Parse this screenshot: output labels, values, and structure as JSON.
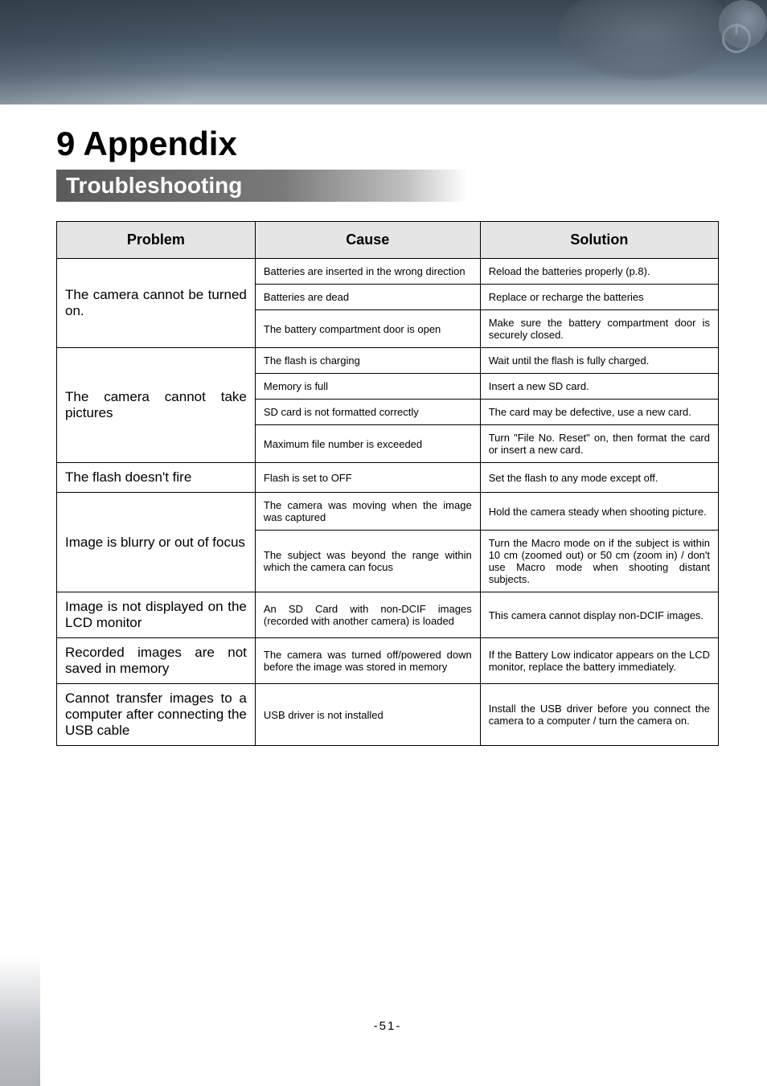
{
  "header": {
    "chapter_title": "9 Appendix",
    "section_title": "Troubleshooting"
  },
  "table": {
    "col_widths": [
      "30%",
      "34%",
      "36%"
    ],
    "headers": [
      "Problem",
      "Cause",
      "Solution"
    ],
    "header_bg": "#e5e5e5",
    "border_color": "#000000",
    "problem_font_size": 17,
    "cell_font_size": 13,
    "groups": [
      {
        "problem": "The camera cannot be turned on.",
        "rows": [
          {
            "cause": "Batteries are inserted in the wrong direction",
            "solution": "Reload the batteries properly (p.8)."
          },
          {
            "cause": "Batteries are dead",
            "solution": "Replace or recharge the batteries"
          },
          {
            "cause": "The battery compartment door is open",
            "solution": "Make sure the battery compartment door is securely closed."
          }
        ]
      },
      {
        "problem": "The camera cannot take pictures",
        "rows": [
          {
            "cause": "The flash is charging",
            "solution": "Wait until the flash is fully charged."
          },
          {
            "cause": "Memory is full",
            "solution": "Insert a new SD card."
          },
          {
            "cause": "SD card is not formatted correctly",
            "solution": "The card may be defective, use a new card."
          },
          {
            "cause": "Maximum file number is exceeded",
            "solution": "Turn \"File No. Reset\" on, then format the card or insert a new card."
          }
        ]
      },
      {
        "problem": "The flash doesn't fire",
        "rows": [
          {
            "cause": "Flash is set to OFF",
            "solution": "Set the flash to any mode except off."
          }
        ]
      },
      {
        "problem": "Image is blurry or out of focus",
        "rows": [
          {
            "cause": "The camera was moving when the image was captured",
            "solution": "Hold the camera steady when shooting picture."
          },
          {
            "cause": "The subject was beyond the range within which the camera can focus",
            "solution": "Turn the Macro mode on if the subject is within 10 cm (zoomed out) or 50 cm (zoom in) / don't use Macro mode when shooting distant subjects."
          }
        ]
      },
      {
        "problem": "Image is not displayed on the LCD monitor",
        "rows": [
          {
            "cause": "An SD Card with non-DCIF images (recorded with another camera) is loaded",
            "solution": "This camera cannot display non-DCIF images."
          }
        ]
      },
      {
        "problem": "Recorded images are not saved in memory",
        "rows": [
          {
            "cause": "The camera was turned off/powered down before the image was stored in memory",
            "solution": "If the Battery Low indicator appears on the LCD monitor, replace the battery immediately."
          }
        ]
      },
      {
        "problem": "Cannot transfer images to a computer after connecting the USB cable",
        "rows": [
          {
            "cause": "USB driver is not installed",
            "solution": "Install the USB driver before you connect the camera to a computer / turn the camera on."
          }
        ]
      }
    ]
  },
  "page_number": "-51-"
}
